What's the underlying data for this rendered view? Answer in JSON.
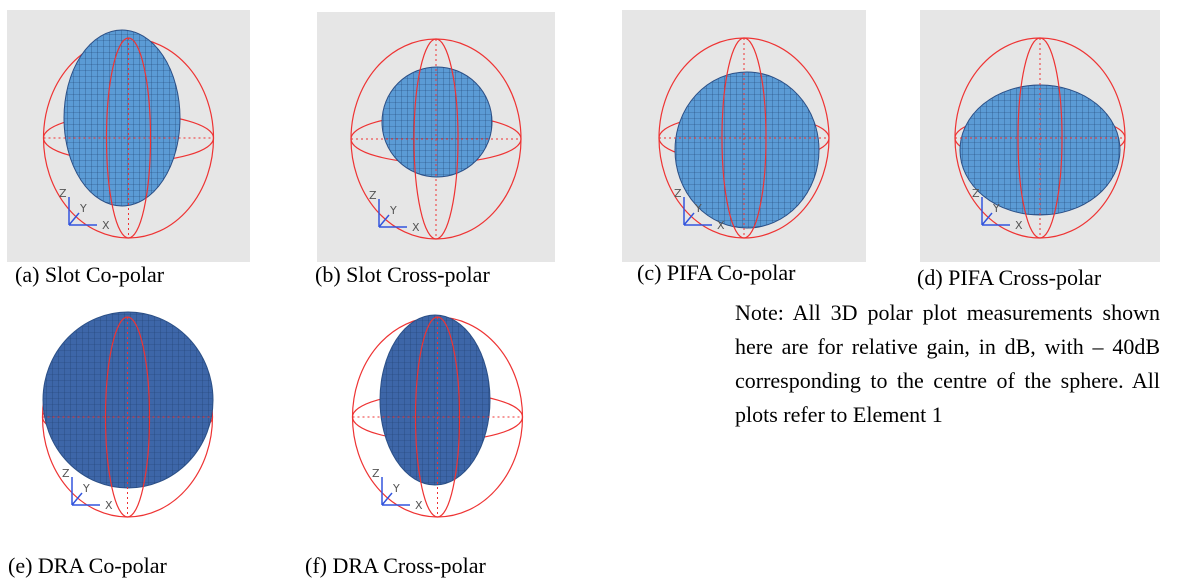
{
  "panels": [
    {
      "caption": "(a) Slot Co-polar",
      "axes": [
        "Z",
        "Y",
        "X"
      ]
    },
    {
      "caption": "(b) Slot Cross-polar",
      "axes": [
        "Z",
        "Y",
        "X"
      ]
    },
    {
      "caption": "(c) PIFA Co-polar",
      "axes": [
        "Z",
        "Y",
        "X"
      ]
    },
    {
      "caption": "(d) PIFA Cross-polar",
      "axes": [
        "Z",
        "Y",
        "X"
      ]
    },
    {
      "caption": "(e) DRA Co-polar",
      "axes": [
        "Z",
        "Y",
        "X"
      ]
    },
    {
      "caption": "(f) DRA Cross-polar",
      "axes": [
        "Z",
        "Y",
        "X"
      ]
    }
  ],
  "note": "Note: All 3D polar plot measurements shown here are for relative gain, in dB, with – 40dB corresponding to the centre of the sphere. All plots refer to Element 1"
}
